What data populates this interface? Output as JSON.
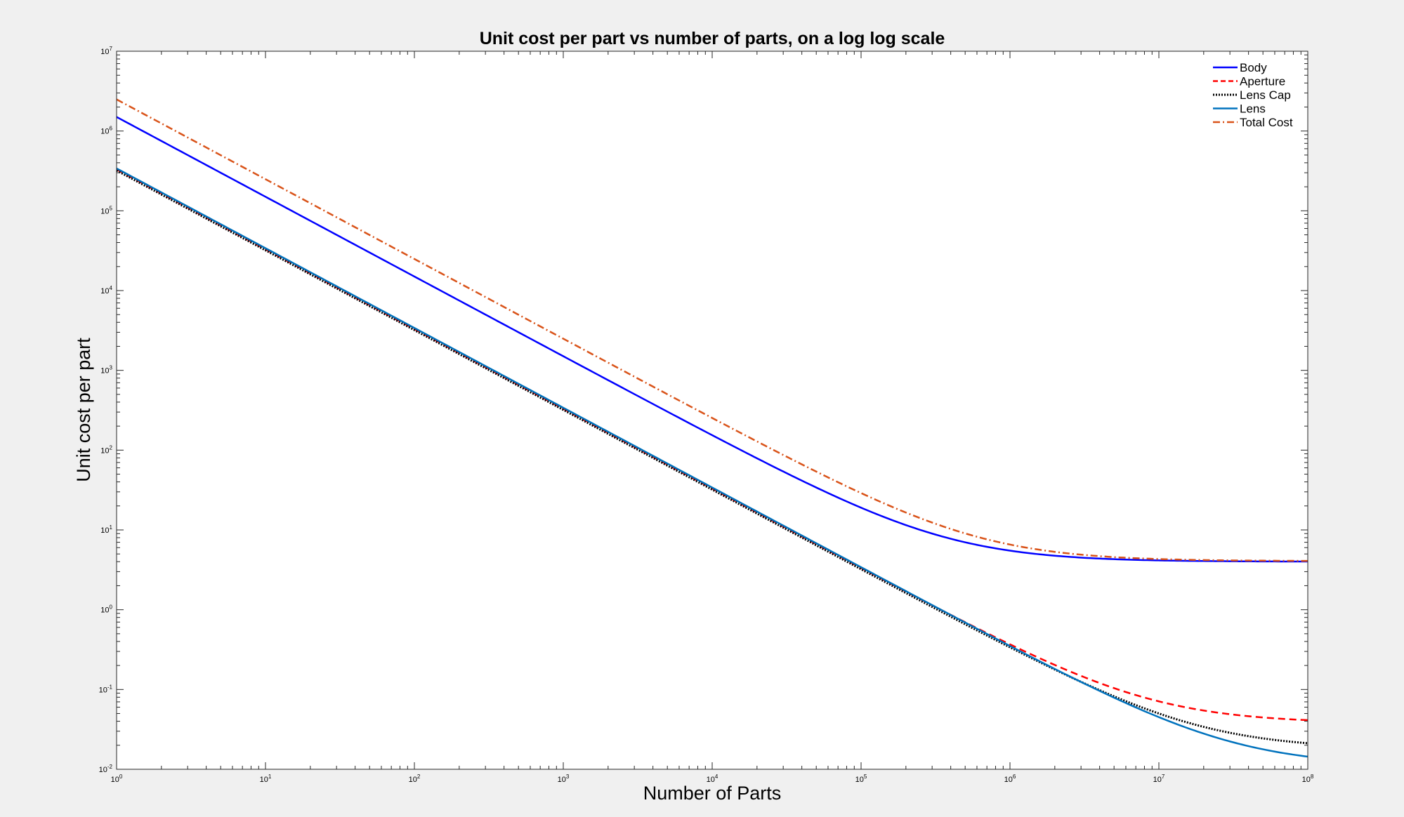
{
  "chart_data": {
    "type": "line",
    "title": "Unit cost per part vs number of parts, on a log log scale",
    "xlabel": "Number of Parts",
    "ylabel": "Unit cost per part",
    "xscale": "log",
    "yscale": "log",
    "xlim": [
      1,
      100000000
    ],
    "ylim": [
      0.01,
      10000000
    ],
    "x_ticks": [
      {
        "base": "10",
        "exp": "0"
      },
      {
        "base": "10",
        "exp": "1"
      },
      {
        "base": "10",
        "exp": "2"
      },
      {
        "base": "10",
        "exp": "3"
      },
      {
        "base": "10",
        "exp": "4"
      },
      {
        "base": "10",
        "exp": "5"
      },
      {
        "base": "10",
        "exp": "6"
      },
      {
        "base": "10",
        "exp": "7"
      },
      {
        "base": "10",
        "exp": "8"
      }
    ],
    "y_ticks": [
      {
        "base": "10",
        "exp": "-2"
      },
      {
        "base": "10",
        "exp": "-1"
      },
      {
        "base": "10",
        "exp": "0"
      },
      {
        "base": "10",
        "exp": "1"
      },
      {
        "base": "10",
        "exp": "2"
      },
      {
        "base": "10",
        "exp": "3"
      },
      {
        "base": "10",
        "exp": "4"
      },
      {
        "base": "10",
        "exp": "5"
      },
      {
        "base": "10",
        "exp": "6"
      },
      {
        "base": "10",
        "exp": "7"
      }
    ],
    "grid": false,
    "legend_position": "top-right",
    "series": [
      {
        "name": "Body",
        "model": {
          "fixed": 1500000,
          "variable": 4.0
        },
        "color": "#0000ff",
        "dash": "solid"
      },
      {
        "name": "Aperture",
        "model": {
          "fixed": 330000,
          "variable": 0.038
        },
        "color": "#ff0000",
        "dash": "dashed"
      },
      {
        "name": "Lens Cap",
        "model": {
          "fixed": 320000,
          "variable": 0.018
        },
        "color": "#000000",
        "dash": "dotted"
      },
      {
        "name": "Lens",
        "model": {
          "fixed": 340000,
          "variable": 0.011
        },
        "color": "#0072bd",
        "dash": "solid"
      },
      {
        "name": "Total Cost",
        "model": {
          "fixed": 2490000,
          "variable": 4.067
        },
        "color": "#d95319",
        "dash": "dashdot"
      }
    ]
  }
}
